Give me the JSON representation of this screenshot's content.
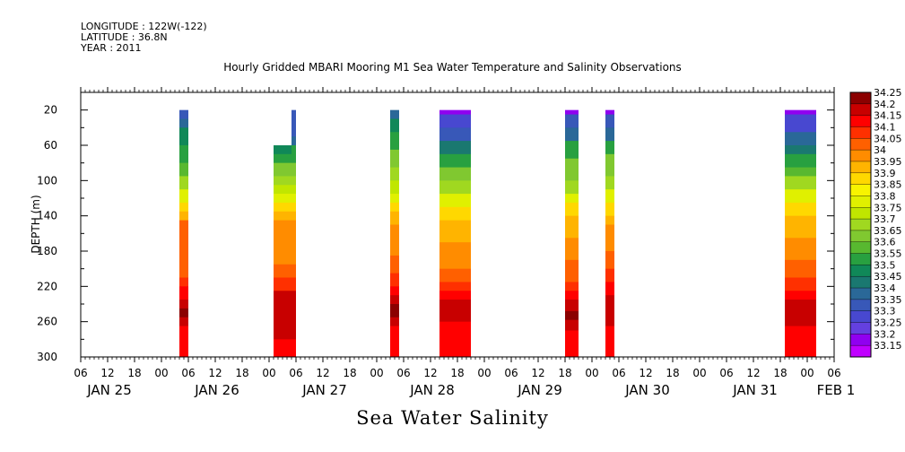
{
  "header": {
    "longitude": "LONGITUDE : 122W(-122)",
    "latitude": "LATITUDE : 36.8N",
    "year": "YEAR : 2011"
  },
  "plot_title": "Hourly Gridded MBARI Mooring M1 Sea Water Temperature and Salinity Observations",
  "main_title": "Sea Water Salinity",
  "chart_data": {
    "type": "heatmap",
    "title": "Hourly Gridded MBARI Mooring M1 Sea Water Temperature and Salinity Observations",
    "xlabel": "",
    "ylabel": "DEPTH (m)",
    "variable": "Sea Water Salinity",
    "y_axis": {
      "range": [
        300,
        0
      ],
      "inverted": true,
      "ticks": [
        20,
        60,
        100,
        140,
        180,
        220,
        260,
        300
      ]
    },
    "x_axis": {
      "range_hours": [
        0,
        168
      ],
      "hour_ticks": [
        "06",
        "12",
        "18",
        "00",
        "06",
        "12",
        "18",
        "00",
        "06",
        "12",
        "18",
        "00",
        "06",
        "12",
        "18",
        "00",
        "06",
        "12",
        "18",
        "00",
        "06",
        "12",
        "18",
        "00",
        "06",
        "12",
        "18",
        "00",
        "06"
      ],
      "date_labels": [
        {
          "label": "JAN 25",
          "at_hour": 6
        },
        {
          "label": "JAN 26",
          "at_hour": 30
        },
        {
          "label": "JAN 27",
          "at_hour": 54
        },
        {
          "label": "JAN 28",
          "at_hour": 78
        },
        {
          "label": "JAN 29",
          "at_hour": 102
        },
        {
          "label": "JAN 30",
          "at_hour": 126
        },
        {
          "label": "JAN 31",
          "at_hour": 150
        },
        {
          "label": "FEB 1",
          "at_hour": 168
        }
      ]
    },
    "colorbar": {
      "levels": [
        "34.25",
        "34.2",
        "34.15",
        "34.1",
        "34.05",
        "34",
        "33.95",
        "33.9",
        "33.85",
        "33.8",
        "33.75",
        "33.7",
        "33.65",
        "33.6",
        "33.55",
        "33.5",
        "33.45",
        "33.4",
        "33.35",
        "33.3",
        "33.25",
        "33.2",
        "33.15"
      ],
      "colors": [
        "#8b0000",
        "#c80000",
        "#ff0000",
        "#ff3000",
        "#ff6000",
        "#ff8c00",
        "#ffb400",
        "#ffd800",
        "#f8f400",
        "#e0f000",
        "#c0e600",
        "#a0d820",
        "#80c830",
        "#58b830",
        "#28a040",
        "#108858",
        "#1a7870",
        "#2a6898",
        "#3858b8",
        "#4848d0",
        "#6440e0",
        "#9000f0",
        "#c000ff"
      ]
    },
    "profiles": [
      {
        "start_hour": 22,
        "end_hour": 24,
        "top_depth": 20,
        "bands": [
          [
            20,
            "#3858b8"
          ],
          [
            30,
            "#2a6898"
          ],
          [
            40,
            "#108858"
          ],
          [
            60,
            "#28a040"
          ],
          [
            80,
            "#58b830"
          ],
          [
            95,
            "#a0d820"
          ],
          [
            110,
            "#e0f000"
          ],
          [
            125,
            "#ffd800"
          ],
          [
            135,
            "#ffb400"
          ],
          [
            145,
            "#ff6000"
          ],
          [
            210,
            "#ff3000"
          ],
          [
            220,
            "#ff0000"
          ],
          [
            235,
            "#c80000"
          ],
          [
            245,
            "#8b0000"
          ],
          [
            255,
            "#c80000"
          ],
          [
            265,
            "#ff0000"
          ]
        ]
      },
      {
        "start_hour": 43,
        "end_hour": 47,
        "top_depth": 60,
        "bands": [
          [
            60,
            "#108858"
          ],
          [
            70,
            "#28a040"
          ],
          [
            80,
            "#80c830"
          ],
          [
            95,
            "#a0d820"
          ],
          [
            105,
            "#c0e600"
          ],
          [
            115,
            "#e0f000"
          ],
          [
            125,
            "#ffd800"
          ],
          [
            135,
            "#ffb400"
          ],
          [
            145,
            "#ff8c00"
          ],
          [
            195,
            "#ff6000"
          ],
          [
            210,
            "#ff3000"
          ],
          [
            225,
            "#c80000"
          ],
          [
            280,
            "#ff0000"
          ]
        ]
      },
      {
        "start_hour": 47,
        "end_hour": 48,
        "top_depth": 20,
        "bands": [
          [
            20,
            "#3858b8"
          ],
          [
            50,
            "#2a6898"
          ],
          [
            60,
            "#28a040"
          ],
          [
            80,
            "#80c830"
          ],
          [
            95,
            "#a0d820"
          ],
          [
            105,
            "#c0e600"
          ],
          [
            115,
            "#e0f000"
          ],
          [
            125,
            "#ffd800"
          ],
          [
            135,
            "#ffb400"
          ],
          [
            145,
            "#ff8c00"
          ],
          [
            195,
            "#ff6000"
          ],
          [
            210,
            "#ff3000"
          ],
          [
            225,
            "#c80000"
          ],
          [
            280,
            "#ff0000"
          ]
        ]
      },
      {
        "start_hour": 69,
        "end_hour": 71,
        "top_depth": 20,
        "bands": [
          [
            20,
            "#2a6898"
          ],
          [
            30,
            "#108858"
          ],
          [
            45,
            "#28a040"
          ],
          [
            65,
            "#80c830"
          ],
          [
            85,
            "#a0d820"
          ],
          [
            100,
            "#c0e600"
          ],
          [
            115,
            "#e0f000"
          ],
          [
            125,
            "#ffd800"
          ],
          [
            135,
            "#ffb400"
          ],
          [
            150,
            "#ff8c00"
          ],
          [
            185,
            "#ff6000"
          ],
          [
            205,
            "#ff3000"
          ],
          [
            220,
            "#ff0000"
          ],
          [
            230,
            "#c80000"
          ],
          [
            240,
            "#8b0000"
          ],
          [
            255,
            "#c80000"
          ],
          [
            265,
            "#ff0000"
          ]
        ]
      },
      {
        "start_hour": 80,
        "end_hour": 87,
        "top_depth": 20,
        "bands": [
          [
            20,
            "#9000f0"
          ],
          [
            25,
            "#4848d0"
          ],
          [
            40,
            "#3858b8"
          ],
          [
            55,
            "#1a7870"
          ],
          [
            70,
            "#28a040"
          ],
          [
            85,
            "#80c830"
          ],
          [
            100,
            "#a0d820"
          ],
          [
            115,
            "#e0f000"
          ],
          [
            130,
            "#ffd800"
          ],
          [
            145,
            "#ffb400"
          ],
          [
            170,
            "#ff8c00"
          ],
          [
            200,
            "#ff6000"
          ],
          [
            215,
            "#ff3000"
          ],
          [
            225,
            "#ff0000"
          ],
          [
            235,
            "#c80000"
          ],
          [
            260,
            "#ff0000"
          ]
        ]
      },
      {
        "start_hour": 108,
        "end_hour": 111,
        "top_depth": 20,
        "bands": [
          [
            20,
            "#9000f0"
          ],
          [
            25,
            "#3858b8"
          ],
          [
            40,
            "#2a6898"
          ],
          [
            55,
            "#28a040"
          ],
          [
            75,
            "#80c830"
          ],
          [
            100,
            "#a0d820"
          ],
          [
            115,
            "#e0f000"
          ],
          [
            125,
            "#ffd800"
          ],
          [
            140,
            "#ffb400"
          ],
          [
            165,
            "#ff8c00"
          ],
          [
            190,
            "#ff6000"
          ],
          [
            215,
            "#ff3000"
          ],
          [
            225,
            "#ff0000"
          ],
          [
            235,
            "#c80000"
          ],
          [
            248,
            "#8b0000"
          ],
          [
            258,
            "#c80000"
          ],
          [
            270,
            "#ff0000"
          ]
        ]
      },
      {
        "start_hour": 117,
        "end_hour": 119,
        "top_depth": 20,
        "bands": [
          [
            20,
            "#9000f0"
          ],
          [
            25,
            "#3858b8"
          ],
          [
            40,
            "#2a6898"
          ],
          [
            55,
            "#28a040"
          ],
          [
            70,
            "#80c830"
          ],
          [
            95,
            "#a0d820"
          ],
          [
            110,
            "#e0f000"
          ],
          [
            125,
            "#ffd800"
          ],
          [
            140,
            "#ffb400"
          ],
          [
            150,
            "#ff8c00"
          ],
          [
            180,
            "#ff6000"
          ],
          [
            200,
            "#ff3000"
          ],
          [
            215,
            "#ff0000"
          ],
          [
            230,
            "#c80000"
          ],
          [
            265,
            "#ff0000"
          ]
        ]
      },
      {
        "start_hour": 157,
        "end_hour": 164,
        "top_depth": 20,
        "bands": [
          [
            20,
            "#9000f0"
          ],
          [
            25,
            "#4848d0"
          ],
          [
            45,
            "#2a6898"
          ],
          [
            60,
            "#1a7870"
          ],
          [
            70,
            "#28a040"
          ],
          [
            85,
            "#58b830"
          ],
          [
            95,
            "#a0d820"
          ],
          [
            110,
            "#e0f000"
          ],
          [
            125,
            "#ffd800"
          ],
          [
            140,
            "#ffb400"
          ],
          [
            165,
            "#ff8c00"
          ],
          [
            190,
            "#ff6000"
          ],
          [
            210,
            "#ff3000"
          ],
          [
            225,
            "#ff0000"
          ],
          [
            235,
            "#c80000"
          ],
          [
            265,
            "#ff0000"
          ]
        ]
      }
    ]
  }
}
